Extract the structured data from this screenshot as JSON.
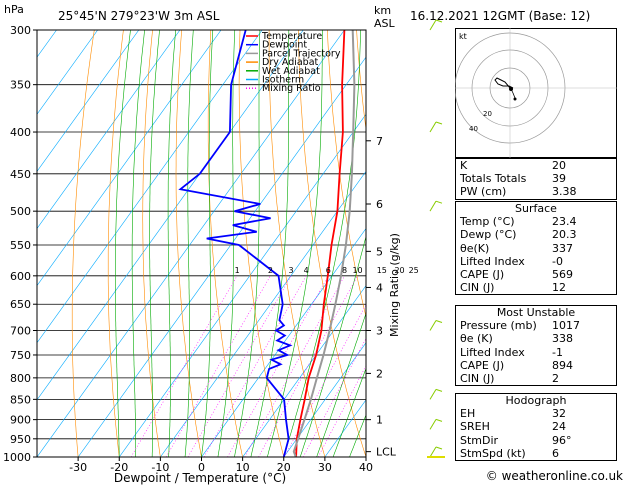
{
  "header": {
    "location": "25°45'N  279°23'W  3m  ASL",
    "datetime": "16.12.2021  12GMT  (Base: 12)",
    "hpa_label": "hPa",
    "km_label": "km",
    "asl_label": "ASL"
  },
  "legend": {
    "items": [
      {
        "label": "Temperature",
        "color": "#ff0000"
      },
      {
        "label": "Dewpoint",
        "color": "#0000ff"
      },
      {
        "label": "Parcel Trajectory",
        "color": "#999999"
      },
      {
        "label": "Dry Adiabat",
        "color": "#ff8c00"
      },
      {
        "label": "Wet Adiabat",
        "color": "#00aa00"
      },
      {
        "label": "Isotherm",
        "color": "#00aaff"
      },
      {
        "label": "Mixing Ratio",
        "color": "#ff00ff"
      }
    ]
  },
  "axes": {
    "xlabel": "Dewpoint / Temperature (°C)",
    "ylabel": "Mixing Ratio (g/kg)",
    "xticks": [
      "-30",
      "-20",
      "-10",
      "0",
      "10",
      "20",
      "30",
      "40"
    ],
    "pressure_ticks": [
      "300",
      "350",
      "400",
      "450",
      "500",
      "550",
      "600",
      "650",
      "700",
      "750",
      "800",
      "850",
      "900",
      "950",
      "1000"
    ],
    "km_ticks": [
      "7",
      "6",
      "5",
      "4",
      "3",
      "2",
      "1",
      "LCL"
    ],
    "mixing_ratio_labels": [
      "1",
      "2",
      "3",
      "4",
      "6",
      "8",
      "10",
      "15",
      "20",
      "25"
    ]
  },
  "chart_data": {
    "type": "line",
    "title": "",
    "xlabel": "Dewpoint / Temperature (°C)",
    "ylabel": "hPa",
    "xlim": [
      -40,
      40
    ],
    "ylim": [
      1000,
      300
    ],
    "y_scale": "log",
    "series": [
      {
        "name": "Temperature",
        "color": "#ff0000",
        "points": [
          [
            1005,
            23.4
          ],
          [
            1000,
            23.0
          ],
          [
            950,
            20.0
          ],
          [
            900,
            17.5
          ],
          [
            850,
            15.0
          ],
          [
            800,
            12.2
          ],
          [
            750,
            10.0
          ],
          [
            700,
            7.0
          ],
          [
            650,
            3.0
          ],
          [
            600,
            -1.0
          ],
          [
            550,
            -5.5
          ],
          [
            500,
            -10.0
          ],
          [
            450,
            -16.0
          ],
          [
            400,
            -22.5
          ],
          [
            350,
            -31.0
          ],
          [
            300,
            -40.0
          ]
        ]
      },
      {
        "name": "Dewpoint",
        "color": "#0000ff",
        "points": [
          [
            1005,
            20.3
          ],
          [
            1000,
            20.0
          ],
          [
            950,
            18.0
          ],
          [
            900,
            14.0
          ],
          [
            850,
            10.0
          ],
          [
            800,
            2.0
          ],
          [
            780,
            1.0
          ],
          [
            770,
            3.0
          ],
          [
            760,
            0.0
          ],
          [
            750,
            3.0
          ],
          [
            740,
            0.0
          ],
          [
            730,
            2.0
          ],
          [
            720,
            -2.0
          ],
          [
            710,
            -1.0
          ],
          [
            700,
            -4.0
          ],
          [
            690,
            -3.0
          ],
          [
            680,
            -5.0
          ],
          [
            650,
            -7.0
          ],
          [
            600,
            -13.0
          ],
          [
            550,
            -28.0
          ],
          [
            540,
            -37.0
          ],
          [
            530,
            -26.0
          ],
          [
            520,
            -33.0
          ],
          [
            510,
            -25.0
          ],
          [
            500,
            -35.0
          ],
          [
            490,
            -30.0
          ],
          [
            470,
            -52.0
          ],
          [
            450,
            -50.0
          ],
          [
            400,
            -50.0
          ],
          [
            350,
            -58.0
          ],
          [
            300,
            -64.0
          ]
        ]
      },
      {
        "name": "Parcel Trajectory",
        "color": "#999999",
        "points": [
          [
            1005,
            23.4
          ],
          [
            985,
            21.5
          ],
          [
            950,
            20.3
          ],
          [
            900,
            18.5
          ],
          [
            850,
            16.5
          ],
          [
            800,
            14.2
          ],
          [
            750,
            11.8
          ],
          [
            700,
            9.0
          ],
          [
            650,
            5.8
          ],
          [
            600,
            2.2
          ],
          [
            550,
            -2.0
          ],
          [
            500,
            -7.0
          ],
          [
            450,
            -13.0
          ],
          [
            400,
            -20.0
          ],
          [
            350,
            -28.0
          ],
          [
            300,
            -38.0
          ]
        ]
      }
    ]
  },
  "hodograph": {
    "label": "kt",
    "ring_labels": [
      "20",
      "40"
    ]
  },
  "indices": {
    "rows": [
      {
        "label": "K",
        "value": "20"
      },
      {
        "label": "Totals Totals",
        "value": "39"
      },
      {
        "label": "PW (cm)",
        "value": "3.38"
      }
    ]
  },
  "surface": {
    "title": "Surface",
    "rows": [
      {
        "label": "Temp (°C)",
        "value": "23.4"
      },
      {
        "label": "Dewp (°C)",
        "value": "20.3"
      },
      {
        "label": "θe(K)",
        "value": "337"
      },
      {
        "label": "Lifted Index",
        "value": "-0"
      },
      {
        "label": "CAPE (J)",
        "value": "569"
      },
      {
        "label": "CIN (J)",
        "value": "12"
      }
    ]
  },
  "most_unstable": {
    "title": "Most Unstable",
    "rows": [
      {
        "label": "Pressure (mb)",
        "value": "1017"
      },
      {
        "label": "θe (K)",
        "value": "338"
      },
      {
        "label": "Lifted Index",
        "value": "-1"
      },
      {
        "label": "CAPE (J)",
        "value": "894"
      },
      {
        "label": "CIN (J)",
        "value": "2"
      }
    ]
  },
  "hodograph_table": {
    "title": "Hodograph",
    "rows": [
      {
        "label": "EH",
        "value": "32"
      },
      {
        "label": "SREH",
        "value": "24"
      },
      {
        "label": "StmDir",
        "value": "96°"
      },
      {
        "label": "StmSpd (kt)",
        "value": "6"
      }
    ]
  },
  "footer": {
    "copyright": "© weatheronline.co.uk"
  }
}
